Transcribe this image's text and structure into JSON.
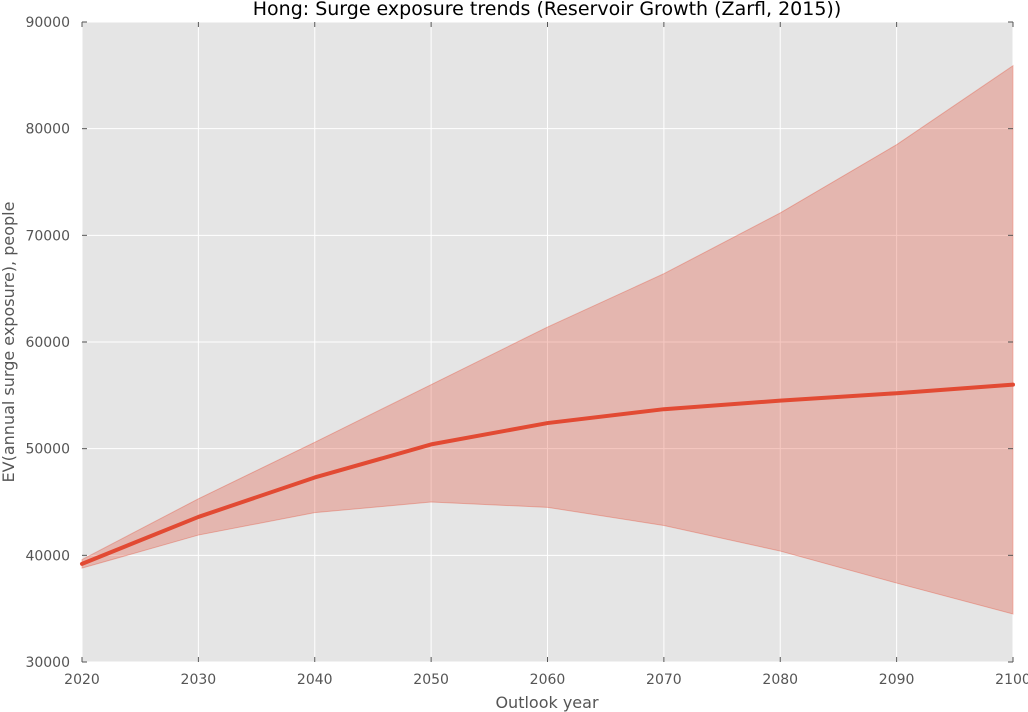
{
  "chart_data": {
    "type": "line",
    "title": "Hong: Surge exposure trends (Reservoir Growth (Zarfl, 2015))",
    "xlabel": "Outlook year",
    "ylabel": "EV(annual surge exposure), people",
    "xlim": [
      2020,
      2100
    ],
    "ylim": [
      30000,
      90000
    ],
    "x_ticks": [
      2020,
      2030,
      2040,
      2050,
      2060,
      2070,
      2080,
      2090,
      2100
    ],
    "y_ticks": [
      30000,
      40000,
      50000,
      60000,
      70000,
      80000,
      90000
    ],
    "grid": true,
    "x": [
      2020,
      2030,
      2040,
      2050,
      2060,
      2070,
      2080,
      2090,
      2100
    ],
    "series": [
      {
        "values": [
          39200,
          43600,
          47300,
          50400,
          52400,
          53700,
          54500,
          55200,
          56000
        ],
        "lower": [
          38800,
          41900,
          44000,
          45000,
          44500,
          42800,
          40400,
          37400,
          34500
        ],
        "upper": [
          39600,
          45300,
          50600,
          56000,
          61400,
          66400,
          72100,
          78500,
          85900
        ],
        "color": "#e24a33",
        "band_color": "#e24a33"
      }
    ],
    "background_color": "#e5e5e5",
    "grid_color": "#ffffff"
  }
}
